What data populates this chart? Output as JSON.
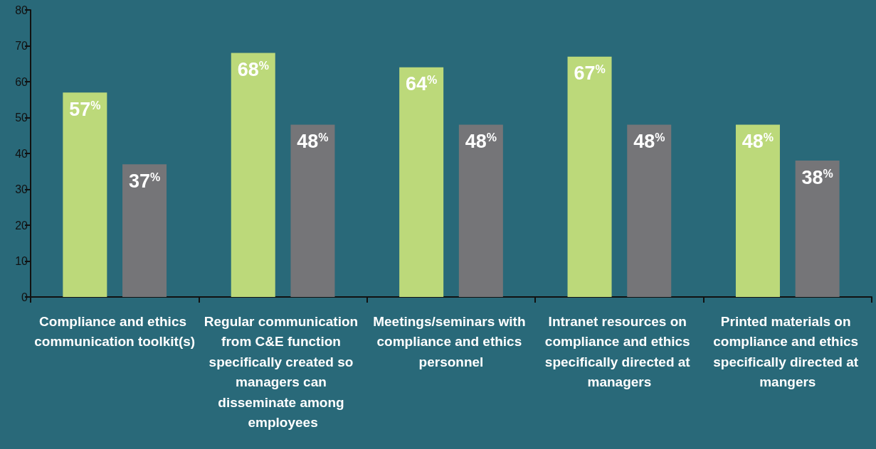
{
  "chart_data": {
    "type": "bar",
    "categories": [
      "Compliance and ethics communication toolkit(s)",
      "Regular communication from C&E function specifically created so managers can disseminate among employees",
      "Meetings/seminars with compliance and ethics personnel",
      "Intranet resources on compliance and ethics specifically directed at managers",
      "Printed materials on compliance and ethics specifically directed at mangers"
    ],
    "series": [
      {
        "color": "#bcd97a",
        "values": [
          57,
          68,
          64,
          67,
          48
        ],
        "value_labels": [
          "57%",
          "68%",
          "64%",
          "67%",
          "48%"
        ]
      },
      {
        "color": "#757578",
        "values": [
          37,
          48,
          48,
          48,
          38
        ],
        "value_labels": [
          "37%",
          "48%",
          "48%",
          "48%",
          "38%"
        ]
      }
    ],
    "ylim": [
      0,
      80
    ],
    "yticks": [
      0,
      10,
      20,
      30,
      40,
      50,
      60,
      70,
      80
    ],
    "grid": false
  }
}
